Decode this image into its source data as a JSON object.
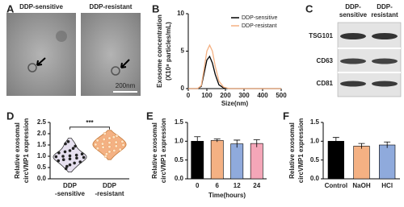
{
  "panel_labels": [
    "A",
    "B",
    "C",
    "D",
    "E",
    "F"
  ],
  "panel_a": {
    "images": [
      "DDP-sensitive",
      "DDP-resistant"
    ],
    "scale_bar": "200nm"
  },
  "panel_c": {
    "columns": [
      [
        "DDP-",
        "sensitive"
      ],
      [
        "DDP-",
        "resistant"
      ]
    ],
    "rows": [
      "TSG101",
      "CD63",
      "CD81"
    ]
  },
  "chart_data": [
    {
      "type": "line",
      "ylabel": [
        "Exosome concentration",
        "(X10⁸ particles/mL)"
      ],
      "xlabel": "Size(nm)",
      "x": [
        0,
        50,
        70,
        85,
        100,
        115,
        130,
        145,
        165,
        190,
        220,
        300,
        400,
        500
      ],
      "series": [
        {
          "name": "DDP-sensitive",
          "color": "#000000",
          "values": [
            0,
            0,
            0.3,
            2.0,
            3.8,
            4.3,
            3.4,
            1.9,
            0.5,
            0.1,
            0,
            0,
            0,
            0
          ]
        },
        {
          "name": "DDP-resistant",
          "color": "#f4b183",
          "values": [
            0,
            0,
            0.4,
            2.6,
            5.0,
            5.8,
            5.0,
            3.0,
            1.0,
            0.2,
            0,
            0,
            0,
            0
          ]
        }
      ],
      "xlim": [
        0,
        500
      ],
      "xticks": [
        0,
        100,
        200,
        300,
        400,
        500
      ],
      "ylim": [
        0,
        10
      ],
      "yticks": [
        0,
        5,
        10
      ],
      "legend": "upper right"
    },
    {
      "type": "violin",
      "ylabel": [
        "Relative exosomal",
        "circVMP1 expression"
      ],
      "categories": [
        [
          "DDP",
          "-sensitive"
        ],
        [
          "DDP",
          "-resistant"
        ]
      ],
      "series": [
        {
          "color": "#e6e0ef",
          "values": [
            0.45,
            0.55,
            0.62,
            0.7,
            0.75,
            0.8,
            0.85,
            0.88,
            0.92,
            0.95,
            0.98,
            1.0,
            1.02,
            1.05,
            1.1,
            1.15,
            1.2,
            1.25,
            1.35,
            1.45,
            1.55,
            1.65
          ]
        },
        {
          "color": "#f4b183",
          "values": [
            1.0,
            1.1,
            1.2,
            1.25,
            1.3,
            1.35,
            1.4,
            1.42,
            1.45,
            1.5,
            1.52,
            1.55,
            1.6,
            1.62,
            1.65,
            1.7,
            1.75,
            1.8,
            1.85,
            1.9,
            2.0
          ]
        }
      ],
      "ylim": [
        0,
        2.5
      ],
      "yticks": [
        {
          "value": 0,
          "label": "0.0"
        },
        {
          "value": 0.5,
          "label": "0.5"
        },
        {
          "value": 1,
          "label": "1.0"
        },
        {
          "value": 1.5,
          "label": "1.5"
        },
        {
          "value": 2,
          "label": "2.0"
        },
        {
          "value": 2.5,
          "label": "2.5"
        }
      ],
      "annotation": "***"
    },
    {
      "type": "bar",
      "ylabel": [
        "Relative exosomal",
        "circVMP1 expression"
      ],
      "xlabel": "Time(hours)",
      "categories": [
        "0",
        "6",
        "12",
        "24"
      ],
      "values": [
        1.0,
        1.02,
        0.93,
        0.94
      ],
      "errors": [
        0.12,
        0.04,
        0.1,
        0.1
      ],
      "colors": [
        "#000000",
        "#f4b183",
        "#8faadc",
        "#f4a6b8"
      ],
      "ylim": [
        0,
        1.5
      ],
      "yticks": [
        {
          "value": 0,
          "label": "0.0"
        },
        {
          "value": 0.5,
          "label": "0.5"
        },
        {
          "value": 1,
          "label": "1.0"
        },
        {
          "value": 1.5,
          "label": "1.5"
        }
      ]
    },
    {
      "type": "bar",
      "ylabel": [
        "Relative exosomal",
        "circVMP1 expression"
      ],
      "categories": [
        "Control",
        "NaOH",
        "HCl"
      ],
      "values": [
        1.0,
        0.87,
        0.9
      ],
      "errors": [
        0.1,
        0.07,
        0.08
      ],
      "colors": [
        "#000000",
        "#f4b183",
        "#8faadc"
      ],
      "ylim": [
        0,
        1.5
      ],
      "yticks": [
        {
          "value": 0,
          "label": "0.0"
        },
        {
          "value": 0.5,
          "label": "0.5"
        },
        {
          "value": 1,
          "label": "1.0"
        },
        {
          "value": 1.5,
          "label": "1.5"
        }
      ]
    }
  ]
}
